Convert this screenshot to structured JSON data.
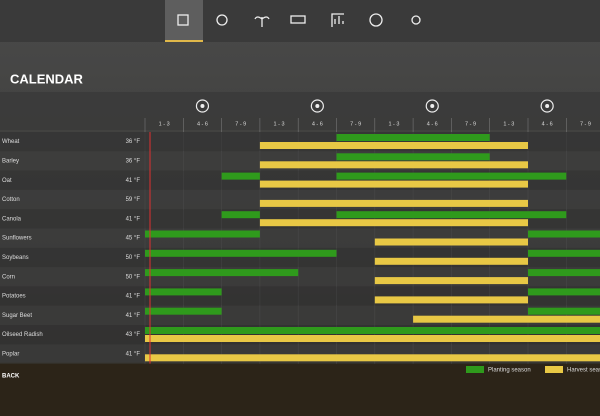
{
  "title": "CALENDAR",
  "periods": [
    "1 - 3",
    "4 - 6",
    "7 - 9",
    "1 - 3",
    "4 - 6",
    "7 - 9",
    "1 - 3",
    "4 - 6",
    "7 - 9",
    "1 - 3",
    "4 - 6",
    "7 - 9"
  ],
  "crops": [
    {
      "name": "Wheat",
      "temp": "36 °F",
      "planting": [
        [
          5,
          9
        ]
      ],
      "harvest": [
        [
          3,
          10
        ]
      ]
    },
    {
      "name": "Barley",
      "temp": "36 °F",
      "planting": [
        [
          5,
          9
        ]
      ],
      "harvest": [
        [
          3,
          10
        ]
      ]
    },
    {
      "name": "Oat",
      "temp": "41 °F",
      "planting": [
        [
          2,
          3
        ],
        [
          5,
          11
        ]
      ],
      "harvest": [
        [
          3,
          10
        ]
      ]
    },
    {
      "name": "Cotton",
      "temp": "59 °F",
      "planting": [],
      "harvest": [
        [
          3,
          10
        ]
      ]
    },
    {
      "name": "Canola",
      "temp": "41 °F",
      "planting": [
        [
          2,
          3
        ],
        [
          5,
          11
        ]
      ],
      "harvest": [
        [
          3,
          10
        ]
      ]
    },
    {
      "name": "Sunflowers",
      "temp": "45 °F",
      "planting": [
        [
          0,
          3
        ],
        [
          10,
          12
        ]
      ],
      "harvest": [
        [
          6,
          10
        ]
      ]
    },
    {
      "name": "Soybeans",
      "temp": "50 °F",
      "planting": [
        [
          0,
          5
        ],
        [
          10,
          12
        ]
      ],
      "harvest": [
        [
          6,
          10
        ]
      ]
    },
    {
      "name": "Corn",
      "temp": "50 °F",
      "planting": [
        [
          0,
          4
        ],
        [
          10,
          12
        ]
      ],
      "harvest": [
        [
          6,
          10
        ]
      ]
    },
    {
      "name": "Potatoes",
      "temp": "41 °F",
      "planting": [
        [
          0,
          2
        ],
        [
          10,
          12
        ]
      ],
      "harvest": [
        [
          6,
          10
        ]
      ]
    },
    {
      "name": "Sugar Beet",
      "temp": "41 °F",
      "planting": [
        [
          0,
          2
        ],
        [
          10,
          12
        ]
      ],
      "harvest": [
        [
          7,
          12
        ]
      ]
    },
    {
      "name": "Oilseed Radish",
      "temp": "43 °F",
      "planting": [
        [
          0,
          12
        ]
      ],
      "harvest": [
        [
          0,
          12
        ]
      ]
    },
    {
      "name": "Poplar",
      "temp": "41 °F",
      "planting": [],
      "harvest": [
        [
          0,
          12
        ]
      ]
    }
  ],
  "legend": {
    "planting": "Planting season",
    "harvest": "Harvest season"
  },
  "colors": {
    "planting": "#2f9a1c",
    "harvest": "#e8c845"
  },
  "back": "BACK"
}
